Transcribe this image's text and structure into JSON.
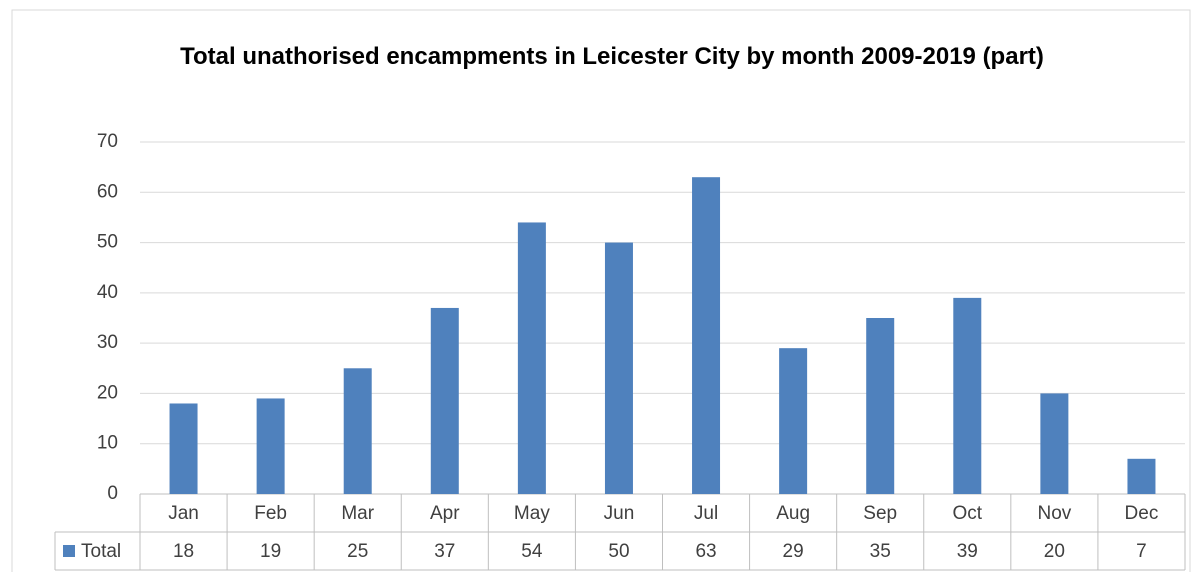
{
  "chart_data": {
    "type": "bar",
    "title": "Total unathorised encampments in Leicester City by month 2009-2019 (part)",
    "categories": [
      "Jan",
      "Feb",
      "Mar",
      "Apr",
      "May",
      "Jun",
      "Jul",
      "Aug",
      "Sep",
      "Oct",
      "Nov",
      "Dec"
    ],
    "series": [
      {
        "name": "Total",
        "color": "#4f81bd",
        "values": [
          18,
          19,
          25,
          37,
          54,
          50,
          63,
          29,
          35,
          39,
          20,
          7
        ]
      }
    ],
    "ylim": [
      0,
      70
    ],
    "yticks": [
      0,
      10,
      20,
      30,
      40,
      50,
      60,
      70
    ],
    "grid": true,
    "data_table": true
  }
}
